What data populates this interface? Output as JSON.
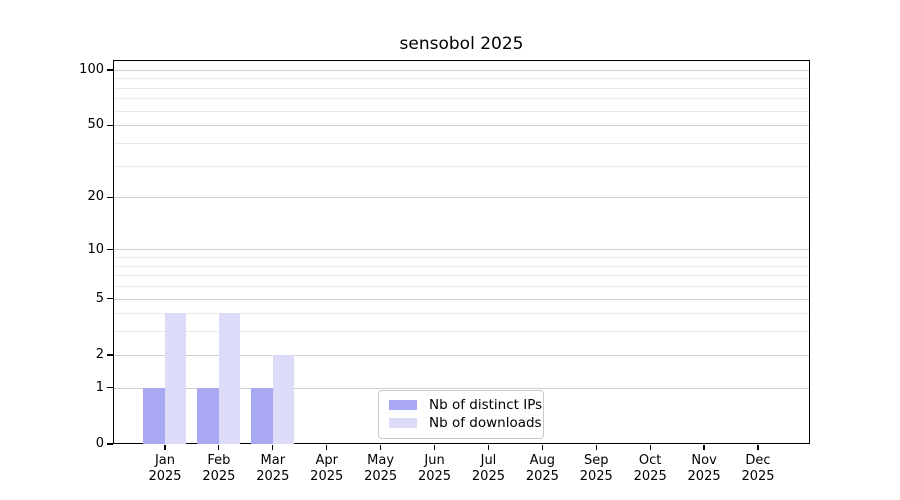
{
  "title": "sensobol 2025",
  "legend": {
    "items": [
      {
        "id": "distinct-ips",
        "label": "Nb of distinct IPs",
        "color": "#a9a9f3"
      },
      {
        "id": "downloads",
        "label": "Nb of downloads",
        "color": "#dcdcf8"
      }
    ]
  },
  "chart_data": {
    "type": "bar",
    "title": "sensobol 2025",
    "x_tick_labels": [
      {
        "month": "Jan",
        "year": "2025"
      },
      {
        "month": "Feb",
        "year": "2025"
      },
      {
        "month": "Mar",
        "year": "2025"
      },
      {
        "month": "Apr",
        "year": "2025"
      },
      {
        "month": "May",
        "year": "2025"
      },
      {
        "month": "Jun",
        "year": "2025"
      },
      {
        "month": "Jul",
        "year": "2025"
      },
      {
        "month": "Aug",
        "year": "2025"
      },
      {
        "month": "Sep",
        "year": "2025"
      },
      {
        "month": "Oct",
        "year": "2025"
      },
      {
        "month": "Nov",
        "year": "2025"
      },
      {
        "month": "Dec",
        "year": "2025"
      }
    ],
    "series": [
      {
        "name": "Nb of distinct IPs",
        "color": "#a9a9f3",
        "values": [
          1,
          1,
          1,
          0,
          0,
          0,
          0,
          0,
          0,
          0,
          0,
          0
        ]
      },
      {
        "name": "Nb of downloads",
        "color": "#dcdcf8",
        "values": [
          4,
          4,
          2,
          0,
          0,
          0,
          0,
          0,
          0,
          0,
          0,
          0
        ]
      }
    ],
    "yscale": "log10(1+x)",
    "ylim": [
      0,
      113
    ],
    "ytick_values": [
      0,
      1,
      2,
      5,
      10,
      20,
      50,
      100
    ],
    "ytick_labels": [
      "0",
      "1",
      "2",
      "5",
      "10",
      "20",
      "50",
      "100"
    ],
    "yminor_tick_values": [
      3,
      4,
      6,
      7,
      8,
      9,
      30,
      40,
      60,
      70,
      80,
      90
    ],
    "xlabel": "",
    "ylabel": "",
    "grid": "horizontal",
    "legend_position": "lower center"
  },
  "colors": {
    "background": "#ffffff",
    "spine": "#000000",
    "major_grid": "#cfcfcf",
    "minor_grid": "#eaeaea",
    "text": "#000000"
  }
}
